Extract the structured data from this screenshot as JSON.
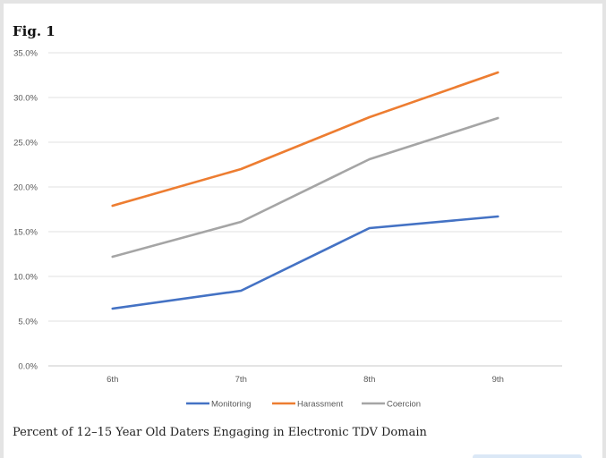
{
  "figure": {
    "label": "Fig. 1",
    "caption": "Percent of 12–15 Year Old Daters Engaging in Electronic TDV Domain"
  },
  "chart_data": {
    "type": "line",
    "title": "",
    "xlabel": "",
    "ylabel": "",
    "categories": [
      "6th",
      "7th",
      "8th",
      "9th"
    ],
    "ylim": [
      0,
      35
    ],
    "yticks": [
      "0.0%",
      "5.0%",
      "10.0%",
      "15.0%",
      "20.0%",
      "25.0%",
      "30.0%",
      "35.0%"
    ],
    "grid": true,
    "legend_position": "bottom",
    "series": [
      {
        "name": "Monitoring",
        "values": [
          6.4,
          8.4,
          15.4,
          16.7
        ],
        "color": "#4472c4"
      },
      {
        "name": "Harassment",
        "values": [
          17.9,
          22.0,
          27.8,
          32.8
        ],
        "color": "#ed7d31"
      },
      {
        "name": "Coercion",
        "values": [
          12.2,
          16.1,
          23.1,
          27.7
        ],
        "color": "#a5a5a5"
      }
    ]
  }
}
